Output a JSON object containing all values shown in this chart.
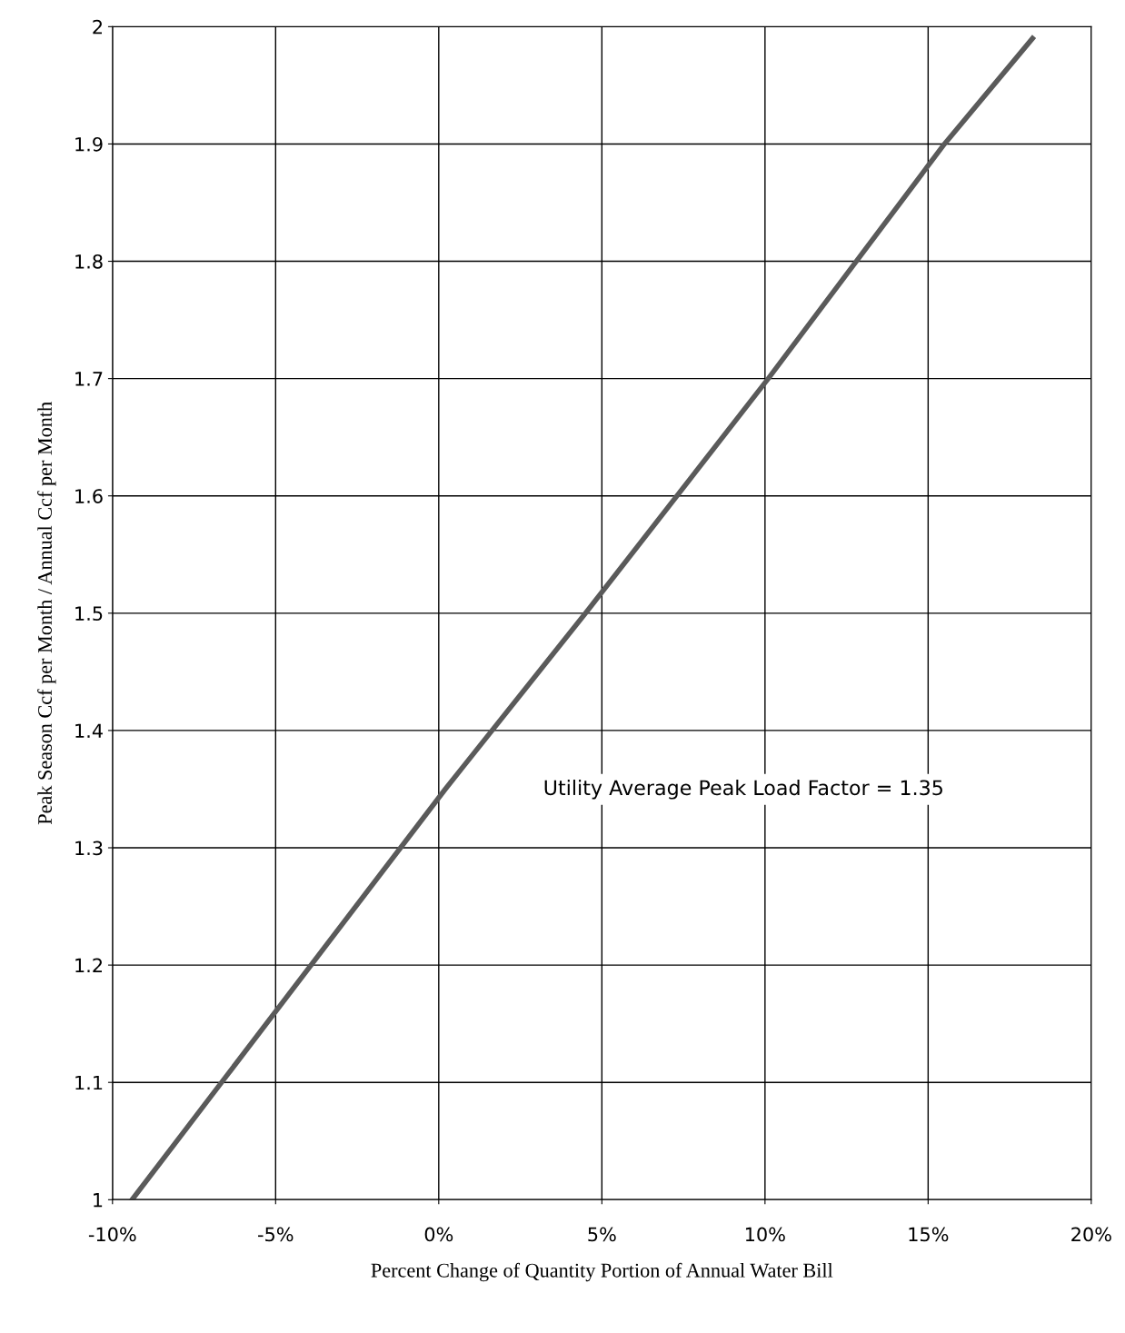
{
  "chart_data": {
    "type": "line",
    "xlabel": "Percent Change of Quantity Portion of Annual Water Bill",
    "ylabel": "Peak Season Ccf per Month / Annual Ccf per Month",
    "x": [
      -9.4,
      0.2,
      4.5,
      10.1,
      15.5,
      18.2
    ],
    "series": [
      {
        "color": "#5a5a5a",
        "values": [
          1.0,
          1.35,
          1.5,
          1.7,
          1.9,
          1.99
        ]
      }
    ],
    "xlim": [
      -10,
      20
    ],
    "ylim": [
      1,
      2
    ],
    "xticks": [
      {
        "value": -10,
        "label": "-10%"
      },
      {
        "value": -5,
        "label": "-5%"
      },
      {
        "value": 0,
        "label": "0%"
      },
      {
        "value": 5,
        "label": "5%"
      },
      {
        "value": 10,
        "label": "10%"
      },
      {
        "value": 15,
        "label": "15%"
      },
      {
        "value": 20,
        "label": "20%"
      }
    ],
    "yticks": [
      1,
      1.1,
      1.2,
      1.3,
      1.4,
      1.5,
      1.6,
      1.7,
      1.8,
      1.9,
      2
    ],
    "grid": true,
    "marker": "none",
    "line_style": "solid",
    "annotations": [
      "Utility Average Peak Load Factor = 1.35"
    ]
  }
}
